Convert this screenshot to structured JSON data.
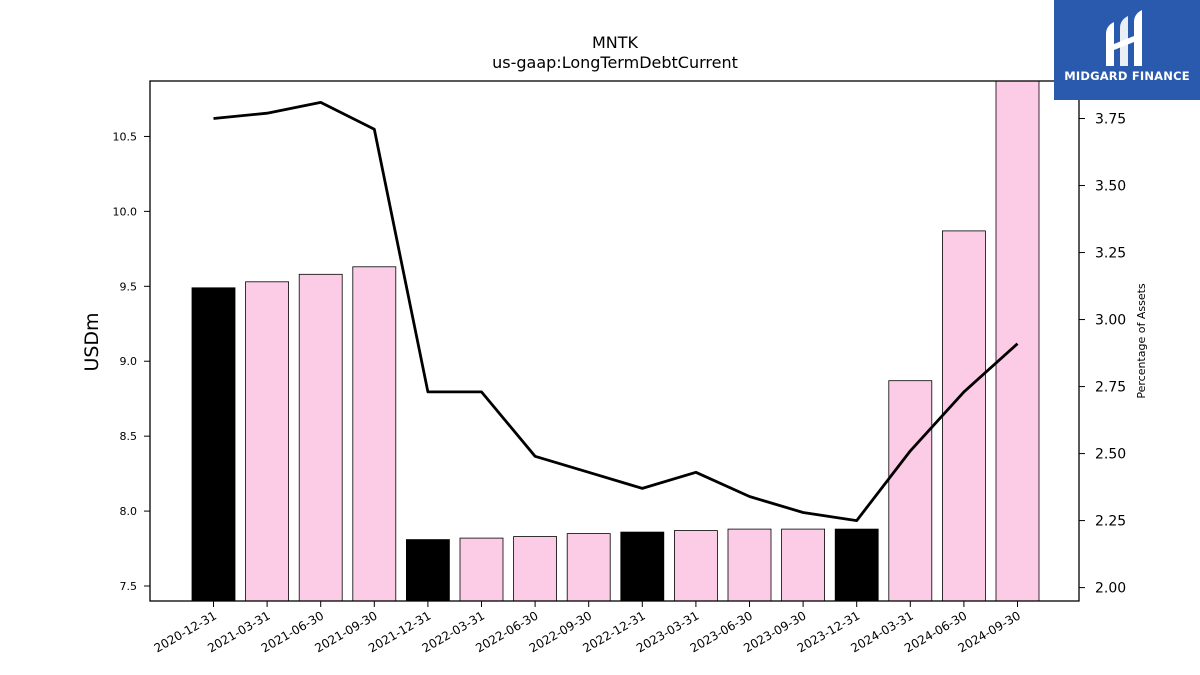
{
  "brand": {
    "name": "MIDGARD FINANCE",
    "icon": "midgard-logo-icon",
    "background_color": "#2a5aad"
  },
  "chart_data": {
    "type": "bar",
    "title": "MNTK",
    "subtitle": "us-gaap:LongTermDebtCurrent",
    "ylabel": "USDm",
    "y2label": "Percentage of Assets",
    "categories": [
      "2020-12-31",
      "2021-03-31",
      "2021-06-30",
      "2021-09-30",
      "2021-12-31",
      "2022-03-31",
      "2022-06-30",
      "2022-09-30",
      "2022-12-31",
      "2023-03-31",
      "2023-06-30",
      "2023-09-30",
      "2023-12-31",
      "2024-03-31",
      "2024-06-30",
      "2024-09-30"
    ],
    "series": [
      {
        "type": "bar",
        "values": [
          9.49,
          9.53,
          9.58,
          9.63,
          7.81,
          7.82,
          7.83,
          7.85,
          7.86,
          7.87,
          7.88,
          7.88,
          7.88,
          8.87,
          9.87,
          10.88
        ],
        "colors": [
          "#000000",
          "#fccce6",
          "#fccce6",
          "#fccce6",
          "#000000",
          "#fccce6",
          "#fccce6",
          "#fccce6",
          "#000000",
          "#fccce6",
          "#fccce6",
          "#fccce6",
          "#000000",
          "#fccce6",
          "#fccce6",
          "#fccce6"
        ]
      },
      {
        "type": "line",
        "axis": "right",
        "values": [
          3.75,
          3.77,
          3.81,
          3.71,
          2.73,
          2.73,
          2.49,
          2.43,
          2.37,
          2.43,
          2.34,
          2.28,
          2.25,
          2.51,
          2.73,
          2.91
        ],
        "color": "#000000"
      }
    ],
    "ylim": [
      7.4,
      10.87
    ],
    "y_ticks": [
      7.5,
      8.0,
      8.5,
      9.0,
      9.5,
      10.0,
      10.5
    ],
    "y_tick_labels": [
      "7.5",
      "8.0",
      "8.5",
      "9.0",
      "9.5",
      "10.0",
      "10.5"
    ],
    "y2lim": [
      1.95,
      3.89
    ],
    "y2_ticks": [
      2.0,
      2.25,
      2.5,
      2.75,
      3.0,
      3.25,
      3.5,
      3.75
    ],
    "y2_tick_labels": [
      "2.00",
      "2.25",
      "2.50",
      "2.75",
      "3.00",
      "3.25",
      "3.50",
      "3.75"
    ],
    "grid": false,
    "legend": "none"
  }
}
